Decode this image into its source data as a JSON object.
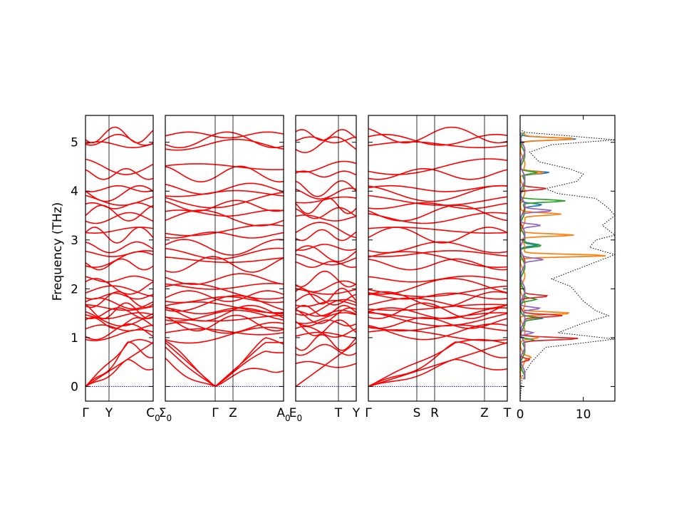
{
  "chart_data": {
    "type": "line",
    "ylabel": "Frequency (THz)",
    "ylim": [
      -0.3,
      5.55
    ],
    "yticks": [
      "0",
      "1",
      "2",
      "3",
      "4",
      "5"
    ],
    "colors": {
      "band": "#ff0000",
      "zero": "#0000cc",
      "total_dos": "#000000"
    },
    "band_panels": [
      {
        "xticks": [
          "Γ",
          "Y",
          "C0"
        ]
      },
      {
        "xticks": [
          "Σ0",
          "Γ",
          "Z",
          "A0"
        ]
      },
      {
        "xticks": [
          "E0",
          "T",
          "Y"
        ]
      },
      {
        "xticks": [
          "Γ",
          "S",
          "R",
          "Z",
          "T"
        ]
      }
    ],
    "band_levels": [
      0.0,
      0.45,
      0.75,
      0.9,
      1.05,
      1.12,
      1.2,
      1.3,
      1.4,
      1.45,
      1.5,
      1.55,
      1.62,
      1.7,
      1.78,
      1.85,
      1.95,
      2.05,
      2.2,
      2.5,
      2.6,
      2.72,
      2.85,
      3.1,
      3.2,
      3.45,
      3.55,
      3.7,
      3.82,
      3.95,
      4.05,
      4.35,
      4.5,
      4.95,
      5.05,
      5.15
    ],
    "dos": {
      "xticks": [
        "0",
        "10"
      ],
      "xlim": [
        0,
        15
      ],
      "series": [
        {
          "color": "#1f77b4",
          "peaks": [
            [
              5.07,
              9
            ],
            [
              4.38,
              4.5
            ],
            [
              3.72,
              3
            ],
            [
              2.9,
              2.5
            ],
            [
              1.4,
              3
            ],
            [
              0.95,
              2
            ]
          ]
        },
        {
          "color": "#ff7f0e",
          "peaks": [
            [
              5.07,
              8
            ],
            [
              4.38,
              3.5
            ],
            [
              3.53,
              6
            ],
            [
              3.1,
              8.5
            ],
            [
              2.68,
              13.5
            ],
            [
              1.5,
              8
            ],
            [
              1.0,
              2.5
            ],
            [
              0.6,
              1
            ]
          ]
        },
        {
          "color": "#2ca02c",
          "peaks": [
            [
              4.38,
              2.5
            ],
            [
              3.8,
              7
            ],
            [
              2.88,
              3
            ],
            [
              1.78,
              2
            ],
            [
              1.4,
              2.5
            ],
            [
              0.95,
              2
            ]
          ]
        },
        {
          "color": "#d62728",
          "peaks": [
            [
              4.05,
              4
            ],
            [
              1.45,
              6
            ],
            [
              0.98,
              9
            ],
            [
              0.55,
              1.5
            ],
            [
              1.85,
              4
            ]
          ]
        },
        {
          "color": "#9467bd",
          "peaks": [
            [
              3.6,
              4.5
            ],
            [
              3.3,
              3
            ],
            [
              2.6,
              3
            ],
            [
              1.6,
              3
            ],
            [
              1.1,
              2
            ]
          ]
        }
      ],
      "total": [
        [
          -0.3,
          0
        ],
        [
          0.2,
          0.3
        ],
        [
          0.5,
          1.8
        ],
        [
          0.8,
          4
        ],
        [
          0.97,
          15
        ],
        [
          1.1,
          6
        ],
        [
          1.3,
          10
        ],
        [
          1.45,
          14
        ],
        [
          1.55,
          12
        ],
        [
          1.75,
          10
        ],
        [
          1.9,
          9
        ],
        [
          2.05,
          8
        ],
        [
          2.2,
          5
        ],
        [
          2.45,
          10
        ],
        [
          2.6,
          13
        ],
        [
          2.7,
          15
        ],
        [
          2.85,
          11
        ],
        [
          3.0,
          12
        ],
        [
          3.1,
          15
        ],
        [
          3.3,
          13
        ],
        [
          3.5,
          15
        ],
        [
          3.65,
          14
        ],
        [
          3.85,
          12
        ],
        [
          3.95,
          6
        ],
        [
          4.05,
          4
        ],
        [
          4.2,
          9
        ],
        [
          4.35,
          10
        ],
        [
          4.45,
          8
        ],
        [
          4.6,
          3
        ],
        [
          4.8,
          1.5
        ],
        [
          4.95,
          5
        ],
        [
          5.05,
          15
        ],
        [
          5.15,
          6
        ],
        [
          5.2,
          1
        ],
        [
          5.25,
          0
        ]
      ]
    }
  }
}
